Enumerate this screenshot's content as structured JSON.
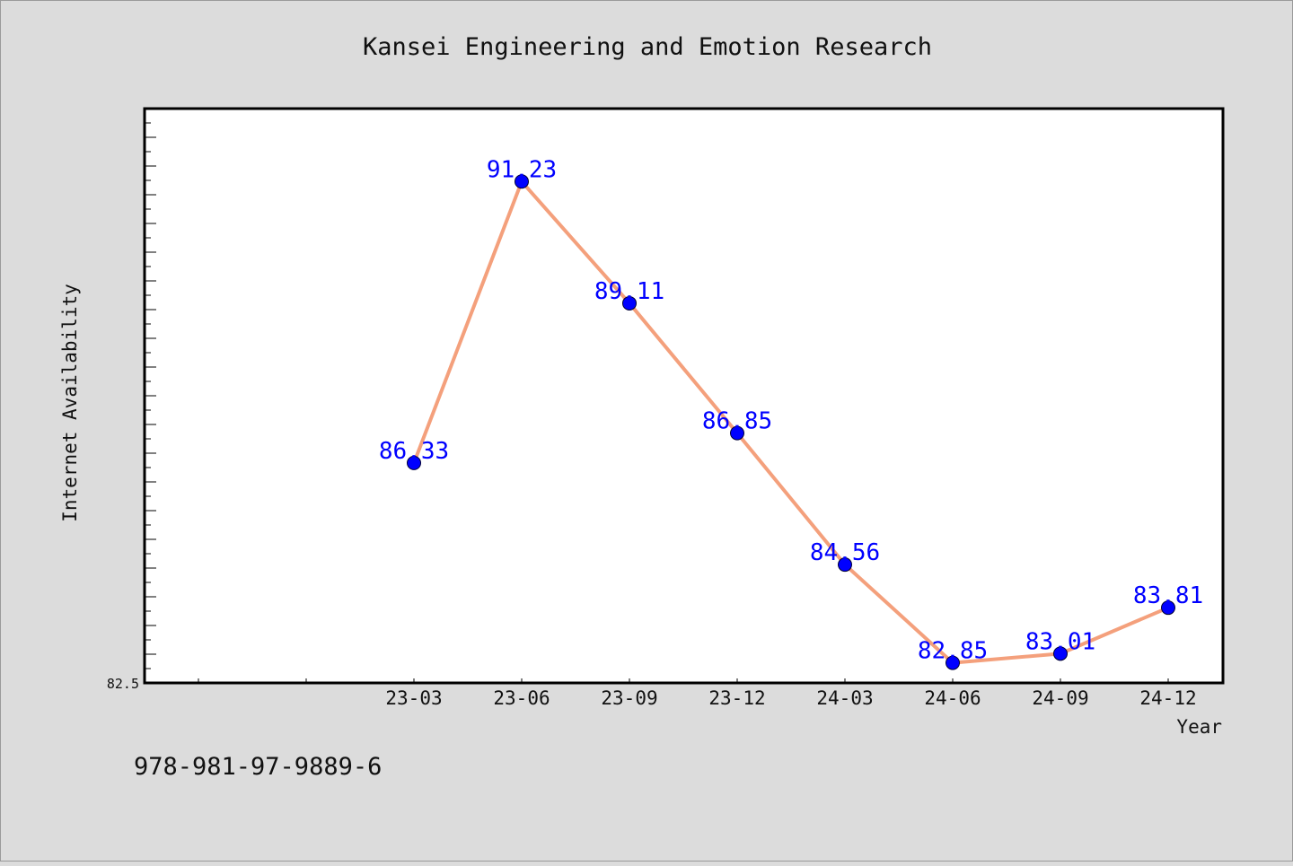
{
  "chart_data": {
    "type": "line",
    "title": "Kansei Engineering and Emotion Research",
    "xlabel": "Year",
    "ylabel": "Internet Availability",
    "categories": [
      "23-03",
      "23-06",
      "23-09",
      "23-12",
      "24-03",
      "24-06",
      "24-09",
      "24-12"
    ],
    "series": [
      {
        "values": [
          86.33,
          91.23,
          89.11,
          86.85,
          84.56,
          82.85,
          83.01,
          83.81
        ],
        "line_color": "#f4a07c",
        "marker_color": "#0000ff"
      }
    ],
    "ylim": [
      82.5,
      92.5
    ],
    "y_tick_labels": [
      "82.5"
    ],
    "data_labels": [
      "86.33",
      "91.23",
      "89.11",
      "86.85",
      "84.56",
      "82.85",
      "83.01",
      "83.81"
    ],
    "grid": false
  },
  "footer": {
    "isbn": "978-981-97-9889-6"
  }
}
